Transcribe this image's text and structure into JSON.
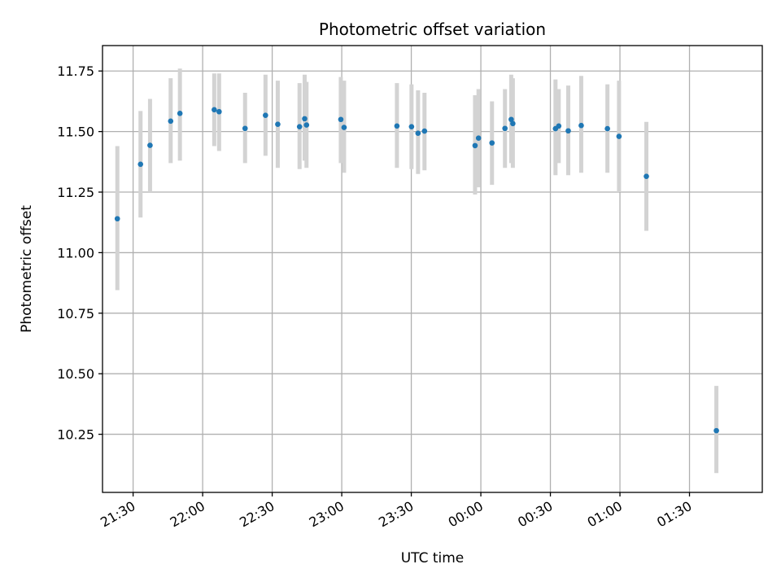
{
  "chart_data": {
    "type": "scatter",
    "title": "Photometric offset variation",
    "xlabel": "UTC time",
    "ylabel": "Photometric offset",
    "x_ticks": [
      "21:30",
      "22:00",
      "22:30",
      "23:00",
      "23:30",
      "00:00",
      "00:30",
      "01:00",
      "01:30"
    ],
    "x_tick_minutes": [
      1290,
      1320,
      1350,
      1380,
      1410,
      1440,
      1470,
      1500,
      1530
    ],
    "y_ticks": [
      "10.25",
      "10.50",
      "10.75",
      "11.00",
      "11.25",
      "11.50",
      "11.75"
    ],
    "y_tick_values": [
      10.25,
      10.5,
      10.75,
      11.0,
      11.25,
      11.5,
      11.75
    ],
    "xlim_minutes": [
      1276.8,
      1561.4
    ],
    "ylim": [
      10.01,
      11.855
    ],
    "grid": true,
    "colors": {
      "point": "#1f77b4",
      "errorbar": "#d3d3d3",
      "grid": "#b0b0b0"
    },
    "points": [
      {
        "t": "21:23.2",
        "y": 11.14,
        "lo": 10.845,
        "hi": 11.44
      },
      {
        "t": "21:33.2",
        "y": 11.365,
        "lo": 11.145,
        "hi": 11.585
      },
      {
        "t": "21:37.3",
        "y": 11.443,
        "lo": 11.25,
        "hi": 11.635
      },
      {
        "t": "21:46.2",
        "y": 11.543,
        "lo": 11.37,
        "hi": 11.72
      },
      {
        "t": "21:50.2",
        "y": 11.575,
        "lo": 11.38,
        "hi": 11.76
      },
      {
        "t": "22:05.0",
        "y": 11.59,
        "lo": 11.44,
        "hi": 11.74
      },
      {
        "t": "22:07.1",
        "y": 11.582,
        "lo": 11.42,
        "hi": 11.74
      },
      {
        "t": "22:18.3",
        "y": 11.513,
        "lo": 11.37,
        "hi": 11.66
      },
      {
        "t": "22:27.1",
        "y": 11.567,
        "lo": 11.4,
        "hi": 11.735
      },
      {
        "t": "22:32.4",
        "y": 11.53,
        "lo": 11.35,
        "hi": 11.71
      },
      {
        "t": "22:41.8",
        "y": 11.52,
        "lo": 11.345,
        "hi": 11.7
      },
      {
        "t": "22:44.0",
        "y": 11.553,
        "lo": 11.38,
        "hi": 11.735
      },
      {
        "t": "22:44.8",
        "y": 11.527,
        "lo": 11.35,
        "hi": 11.705
      },
      {
        "t": "22:59.6",
        "y": 11.55,
        "lo": 11.37,
        "hi": 11.725
      },
      {
        "t": "23:01.0",
        "y": 11.517,
        "lo": 11.33,
        "hi": 11.71
      },
      {
        "t": "23:23.8",
        "y": 11.523,
        "lo": 11.35,
        "hi": 11.7
      },
      {
        "t": "23:30.1",
        "y": 11.52,
        "lo": 11.345,
        "hi": 11.695
      },
      {
        "t": "23:32.9",
        "y": 11.493,
        "lo": 11.325,
        "hi": 11.67
      },
      {
        "t": "23:35.7",
        "y": 11.502,
        "lo": 11.34,
        "hi": 11.66
      },
      {
        "t": "23:57.5",
        "y": 11.442,
        "lo": 11.24,
        "hi": 11.65
      },
      {
        "t": "23:59.0",
        "y": 11.473,
        "lo": 11.27,
        "hi": 11.675
      },
      {
        "t": "00:04.8",
        "y": 11.453,
        "lo": 11.28,
        "hi": 11.625
      },
      {
        "t": "00:10.4",
        "y": 11.513,
        "lo": 11.35,
        "hi": 11.675
      },
      {
        "t": "00:13.1",
        "y": 11.55,
        "lo": 11.37,
        "hi": 11.735
      },
      {
        "t": "00:13.8",
        "y": 11.533,
        "lo": 11.35,
        "hi": 11.72
      },
      {
        "t": "00:32.2",
        "y": 11.512,
        "lo": 11.32,
        "hi": 11.715
      },
      {
        "t": "00:33.6",
        "y": 11.523,
        "lo": 11.37,
        "hi": 11.675
      },
      {
        "t": "00:37.7",
        "y": 11.503,
        "lo": 11.32,
        "hi": 11.69
      },
      {
        "t": "00:43.3",
        "y": 11.525,
        "lo": 11.33,
        "hi": 11.73
      },
      {
        "t": "00:54.6",
        "y": 11.512,
        "lo": 11.33,
        "hi": 11.695
      },
      {
        "t": "00:59.6",
        "y": 11.48,
        "lo": 11.25,
        "hi": 11.71
      },
      {
        "t": "01:11.4",
        "y": 11.315,
        "lo": 11.09,
        "hi": 11.54
      },
      {
        "t": "01:41.6",
        "y": 10.265,
        "lo": 10.09,
        "hi": 10.45
      }
    ]
  }
}
